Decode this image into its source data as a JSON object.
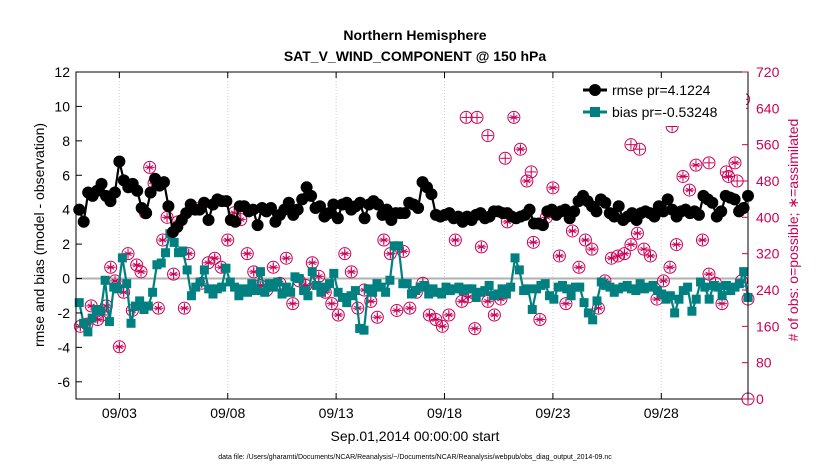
{
  "chart_data": {
    "type": "line",
    "title": "Northern Hemisphere",
    "subtitle": "SAT_V_WIND_COMPONENT @ 150 hPa",
    "xlabel": "Sep.01,2014 00:00:00 start",
    "ylabel_left": "rmse and bias (model - observation)",
    "ylabel_right": "# of obs: o=possible; ∗=assimilated",
    "footnote": "data file: /Users/gharamti/Documents/NCAR/Reanalysis/~/Documents/NCAR/Reanalysis/webpub/obs_diag_output_2014-09.nc",
    "xlim": [
      0,
      31
    ],
    "ylim_left": [
      -7,
      12
    ],
    "ylim_right": [
      0,
      720
    ],
    "x_ticks": [
      2,
      7,
      12,
      17,
      22,
      27
    ],
    "x_tick_labels": [
      "09/03",
      "09/08",
      "09/13",
      "09/18",
      "09/23",
      "09/28"
    ],
    "y_ticks_left": [
      -6,
      -4,
      -2,
      0,
      2,
      4,
      6,
      8,
      10,
      12
    ],
    "y_ticks_right": [
      0,
      80,
      160,
      240,
      320,
      400,
      480,
      560,
      640,
      720
    ],
    "colors": {
      "rmse": "#000000",
      "bias": "#008080",
      "obs": "#cc0055",
      "zero_line": "#b0b0b0"
    },
    "legend": {
      "location": "top-right",
      "rmse_label": "rmse pr=4.1224",
      "bias_label": "bias pr=-0.53248"
    },
    "series": [
      {
        "name": "rmse",
        "marker": "circle",
        "values": [
          4.0,
          3.3,
          5.0,
          4.8,
          5.1,
          5.5,
          4.8,
          4.5,
          5.0,
          6.8,
          5.7,
          5.3,
          5.5,
          5.1,
          4.1,
          3.8,
          5.0,
          5.8,
          5.4,
          5.6,
          4.2,
          2.7,
          3.0,
          3.4,
          3.8,
          4.3,
          4.0,
          4.0,
          4.4,
          3.4,
          4.3,
          4.6,
          4.5,
          4.5,
          3.4,
          3.3,
          4.2,
          4.2,
          3.9,
          4.0,
          3.1,
          4.1,
          3.9,
          4.1,
          3.3,
          3.7,
          4.0,
          4.4,
          3.7,
          4.0,
          4.6,
          5.3,
          4.8,
          4.1,
          4.2,
          3.6,
          3.8,
          4.3,
          3.5,
          4.3,
          4.4,
          4.0,
          4.2,
          4.4,
          3.5,
          4.3,
          4.5,
          4.3,
          3.7,
          4.0,
          3.4,
          3.8,
          3.8,
          3.8,
          4.4,
          4.3,
          4.1,
          5.6,
          5.3,
          4.9,
          3.7,
          3.6,
          3.7,
          3.8,
          3.5,
          3.6,
          3.3,
          3.6,
          3.4,
          3.7,
          3.8,
          3.5,
          3.6,
          3.9,
          3.9,
          3.8,
          3.8,
          3.6,
          3.5,
          3.6,
          3.7,
          4.0,
          3.2,
          3.2,
          3.1,
          3.9,
          4.0,
          3.7,
          3.9,
          4.0,
          3.5,
          3.9,
          4.5,
          4.8,
          4.5,
          4.2,
          3.9,
          4.6,
          4.4,
          3.8,
          3.6,
          4.2,
          3.4,
          3.6,
          3.8,
          3.4,
          3.8,
          3.9,
          3.8,
          3.6,
          4.2,
          3.9,
          4.6,
          4.0,
          3.6,
          3.9,
          4.0,
          3.8,
          3.9,
          3.7,
          4.8,
          4.6,
          4.4,
          3.6,
          3.9,
          4.8,
          4.7,
          4.6,
          3.9,
          4.1,
          4.8
        ]
      },
      {
        "name": "bias",
        "marker": "square",
        "values": [
          -1.4,
          -2.6,
          -3.1,
          -2.3,
          -1.8,
          -1.9,
          -0.1,
          -2.5,
          -0.5,
          -0.6,
          1.2,
          -0.3,
          -2.6,
          -1.6,
          -1.3,
          -1.8,
          -1.6,
          -0.8,
          0.8,
          0.9,
          1.5,
          2.6,
          2.1,
          1.5,
          1.6,
          0.5,
          -1.0,
          -0.5,
          -0.2,
          0.5,
          -0.6,
          -0.9,
          -0.6,
          -0.5,
          0.6,
          -0.2,
          -0.5,
          -1.0,
          -0.6,
          -0.8,
          -0.3,
          -0.7,
          0.4,
          -0.8,
          -0.3,
          -0.5,
          -0.2,
          -0.9,
          -0.5,
          -0.8,
          0.1,
          0.0,
          -0.7,
          -1.0,
          0.4,
          -0.4,
          -0.8,
          -0.5,
          -0.3,
          0.3,
          -0.8,
          -1.1,
          -1.4,
          -1.0,
          -0.7,
          -2.9,
          -3.0,
          -0.6,
          -0.8,
          -0.3,
          -0.5,
          -0.8,
          -0.1,
          1.9,
          1.9,
          -0.3,
          -0.3,
          -0.9,
          -0.7,
          -0.5,
          -0.4,
          -0.9,
          -0.6,
          -0.8,
          -0.9,
          -0.5,
          -0.7,
          -0.6,
          -0.5,
          -0.7,
          -0.6,
          -0.6,
          -1.1,
          -0.8,
          -0.7,
          -0.4,
          -1.0,
          -0.9,
          -0.6,
          -0.9,
          -0.5,
          1.2,
          0.5,
          -0.7,
          -0.6,
          -1.8,
          -0.6,
          -0.4,
          -0.3,
          -1.0,
          -1.2,
          -0.5,
          -0.4,
          -0.6,
          -1.0,
          -0.5,
          -0.5,
          -1.4,
          -2.0,
          -2.4,
          -1.3,
          -0.2,
          -0.4,
          -0.5,
          -0.8,
          -0.6,
          -0.5,
          -0.4,
          -0.6,
          -0.7,
          -0.3,
          -0.6,
          -0.5,
          -0.4,
          -0.7,
          -0.9,
          -1.2,
          -1.0,
          -2.0,
          -1.2,
          -0.7,
          -0.5,
          -1.9,
          -1.2,
          -0.2,
          -0.5,
          -1.2,
          -0.4,
          -0.5,
          -1.0,
          -0.4,
          -0.7,
          -0.5,
          -0.3,
          0.4,
          -1.1
        ]
      },
      {
        "name": "obs_possible",
        "axis": "right",
        "marker": "circle-plus",
        "x": [
          0.2,
          0.5,
          0.7,
          1.0,
          1.2,
          1.4,
          1.6,
          1.8,
          2.0,
          2.2,
          2.4,
          2.6,
          2.8,
          3.0,
          3.2,
          3.4,
          3.6,
          3.8,
          4.0,
          4.2,
          4.5,
          4.7,
          5.0,
          5.2,
          5.5,
          5.8,
          6.1,
          6.4,
          6.7,
          7.0,
          7.3,
          7.6,
          7.9,
          8.2,
          8.5,
          8.8,
          9.1,
          9.4,
          9.7,
          10.0,
          10.3,
          10.6,
          10.9,
          11.2,
          11.5,
          11.8,
          12.1,
          12.4,
          12.7,
          13.0,
          13.3,
          13.6,
          13.9,
          14.2,
          14.5,
          14.8,
          15.1,
          15.4,
          15.7,
          16.0,
          16.3,
          16.6,
          16.9,
          17.2,
          17.5,
          17.8,
          18.1,
          18.4,
          18.7,
          19.0,
          19.3,
          19.6,
          19.9,
          20.2,
          20.5,
          20.8,
          21.1,
          21.4,
          21.7,
          22.0,
          22.3,
          22.6,
          22.9,
          23.2,
          23.5,
          23.8,
          24.1,
          24.4,
          24.7,
          25.0,
          25.3,
          25.6,
          25.9,
          26.2,
          26.5,
          26.8,
          27.1,
          27.4,
          27.7,
          28.0,
          28.3,
          28.6,
          28.9,
          29.2,
          29.5,
          29.8,
          30.1,
          30.4,
          30.7,
          31.0
        ],
        "values": [
          160,
          165,
          205,
          175,
          185,
          205,
          290,
          260,
          115,
          235,
          320,
          195,
          295,
          280,
          410,
          510,
          475,
          200,
          350,
          400,
          275,
          390,
          200,
          320,
          420,
          255,
          300,
          310,
          290,
          350,
          410,
          395,
          320,
          280,
          250,
          240,
          290,
          255,
          310,
          210,
          260,
          250,
          300,
          270,
          235,
          210,
          185,
          320,
          280,
          200,
          240,
          215,
          180,
          350,
          320,
          195,
          325,
          200,
          235,
          255,
          185,
          175,
          160,
          185,
          350,
          215,
          225,
          155,
          335,
          215,
          185,
          220,
          390,
          620,
          550,
          480,
          345,
          175,
          400,
          465,
          315,
          210,
          370,
          290,
          350,
          330,
          200,
          260,
          310,
          315,
          320,
          340,
          365,
          330,
          315,
          220,
          260,
          290,
          340,
          490,
          460,
          515,
          350,
          275,
          255,
          210,
          490,
          520,
          260,
          220
        ]
      },
      {
        "name": "obs_assimilated",
        "axis": "right",
        "marker": "star",
        "x": [
          0.2,
          0.5,
          0.7,
          1.0,
          1.2,
          1.4,
          1.6,
          1.8,
          2.0,
          2.2,
          2.4,
          2.6,
          2.8,
          3.0,
          3.2,
          3.4,
          3.6,
          3.8,
          4.0,
          4.2,
          4.5,
          4.7,
          5.0,
          5.2,
          5.5,
          5.8,
          6.1,
          6.4,
          6.7,
          7.0,
          7.3,
          7.6,
          7.9,
          8.2,
          8.5,
          8.8,
          9.1,
          9.4,
          9.7,
          10.0,
          10.3,
          10.6,
          10.9,
          11.2,
          11.5,
          11.8,
          12.1,
          12.4,
          12.7,
          13.0,
          13.3,
          13.6,
          13.9,
          14.2,
          14.5,
          14.8,
          15.1,
          15.4,
          15.7,
          16.0,
          16.3,
          16.6,
          16.9,
          17.2,
          17.5,
          17.8,
          18.1,
          18.4,
          18.7,
          19.0,
          19.3,
          19.6,
          19.9,
          20.2,
          20.5,
          20.8,
          21.1,
          21.4,
          21.7,
          22.0,
          22.3,
          22.6,
          22.9,
          23.2,
          23.5,
          23.8,
          24.1,
          24.4,
          24.7,
          25.0,
          25.3,
          25.6,
          25.9,
          26.2,
          26.5,
          26.8,
          27.1,
          27.4,
          27.7,
          28.0,
          28.3,
          28.6,
          28.9,
          29.2,
          29.5,
          29.8,
          30.1,
          30.4,
          30.7,
          31.0
        ],
        "values": [
          160,
          165,
          205,
          175,
          185,
          205,
          290,
          260,
          115,
          235,
          320,
          195,
          295,
          280,
          410,
          510,
          475,
          200,
          350,
          400,
          275,
          390,
          200,
          320,
          420,
          255,
          300,
          310,
          290,
          350,
          410,
          395,
          320,
          280,
          250,
          240,
          290,
          255,
          310,
          210,
          260,
          250,
          300,
          270,
          235,
          210,
          185,
          320,
          280,
          200,
          240,
          215,
          180,
          350,
          320,
          195,
          325,
          200,
          235,
          255,
          185,
          175,
          160,
          185,
          350,
          215,
          225,
          155,
          335,
          215,
          185,
          220,
          390,
          620,
          550,
          480,
          345,
          175,
          400,
          465,
          315,
          210,
          370,
          290,
          350,
          330,
          200,
          260,
          310,
          315,
          320,
          340,
          365,
          330,
          315,
          220,
          260,
          290,
          340,
          490,
          460,
          515,
          350,
          275,
          255,
          210,
          490,
          520,
          260,
          220
        ]
      },
      {
        "name": "obs_extra_possible",
        "axis": "right",
        "marker": "circle-plus",
        "x": [
          18.0,
          18.5,
          19.0,
          19.8,
          21.0,
          25.6,
          26.0,
          27.5,
          28.2,
          28.5,
          29.2,
          30.0,
          30.5,
          30.8,
          31.0
        ],
        "values": [
          620,
          620,
          580,
          530,
          500,
          560,
          550,
          600,
          640,
          620,
          520,
          500,
          480,
          660,
          0
        ]
      }
    ]
  }
}
